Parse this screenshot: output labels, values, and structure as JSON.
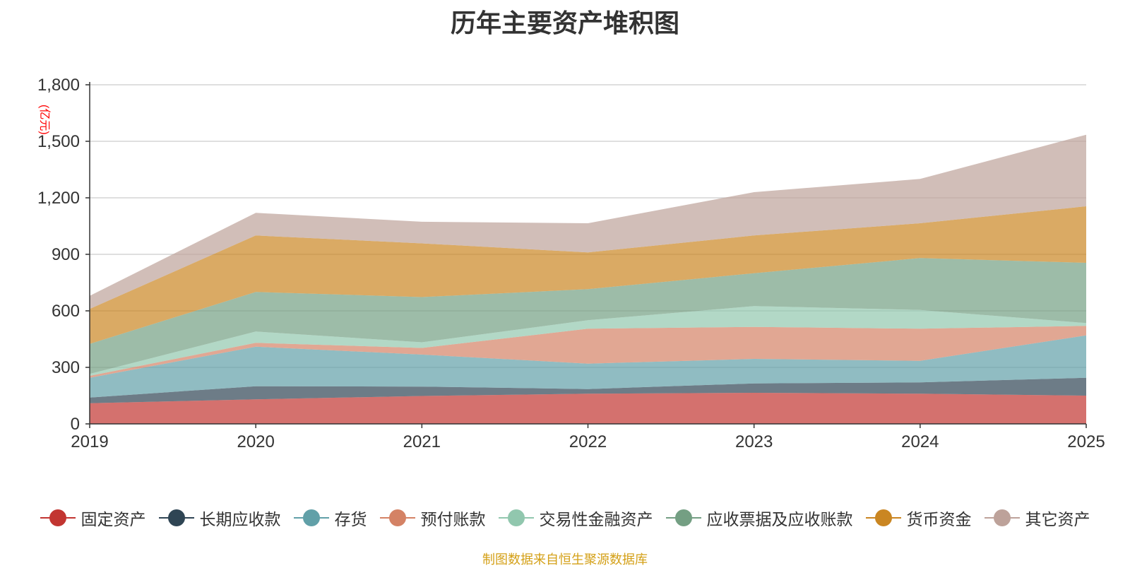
{
  "chart_data": {
    "type": "area",
    "stacked": true,
    "title": "历年主要资产堆积图",
    "ylabel": "(亿元)",
    "xlabel": "",
    "x": [
      "2019",
      "2020",
      "2021",
      "2022",
      "2023",
      "2024",
      "2025"
    ],
    "ylim": [
      0,
      1800
    ],
    "yticks": [
      0,
      300,
      600,
      900,
      1200,
      1500,
      1800
    ],
    "ytick_labels": [
      "0",
      "300",
      "600",
      "900",
      "1,200",
      "1,500",
      "1,800"
    ],
    "grid": true,
    "legend_position": "bottom",
    "series": [
      {
        "name": "固定资产",
        "color": "#c23531",
        "values": [
          110,
          130,
          148,
          160,
          165,
          160,
          150
        ]
      },
      {
        "name": "长期应收款",
        "color": "#2f4554",
        "values": [
          30,
          70,
          50,
          25,
          50,
          60,
          95
        ]
      },
      {
        "name": "存货",
        "color": "#61a0a8",
        "values": [
          105,
          210,
          170,
          135,
          130,
          115,
          225
        ]
      },
      {
        "name": "预付账款",
        "color": "#d48265",
        "values": [
          10,
          20,
          35,
          185,
          170,
          170,
          50
        ]
      },
      {
        "name": "交易性金融资产",
        "color": "#91c7ae",
        "values": [
          10,
          60,
          30,
          45,
          110,
          100,
          15
        ]
      },
      {
        "name": "应收票据及应收账款",
        "color": "#749f83",
        "values": [
          160,
          210,
          240,
          165,
          175,
          275,
          320
        ]
      },
      {
        "name": "货币资金",
        "color": "#ca8622",
        "values": [
          185,
          300,
          285,
          195,
          200,
          185,
          300
        ]
      },
      {
        "name": "其它资产",
        "color": "#bda29a",
        "values": [
          70,
          120,
          115,
          155,
          230,
          235,
          380
        ]
      }
    ]
  },
  "footer": "制图数据来自恒生聚源数据库"
}
